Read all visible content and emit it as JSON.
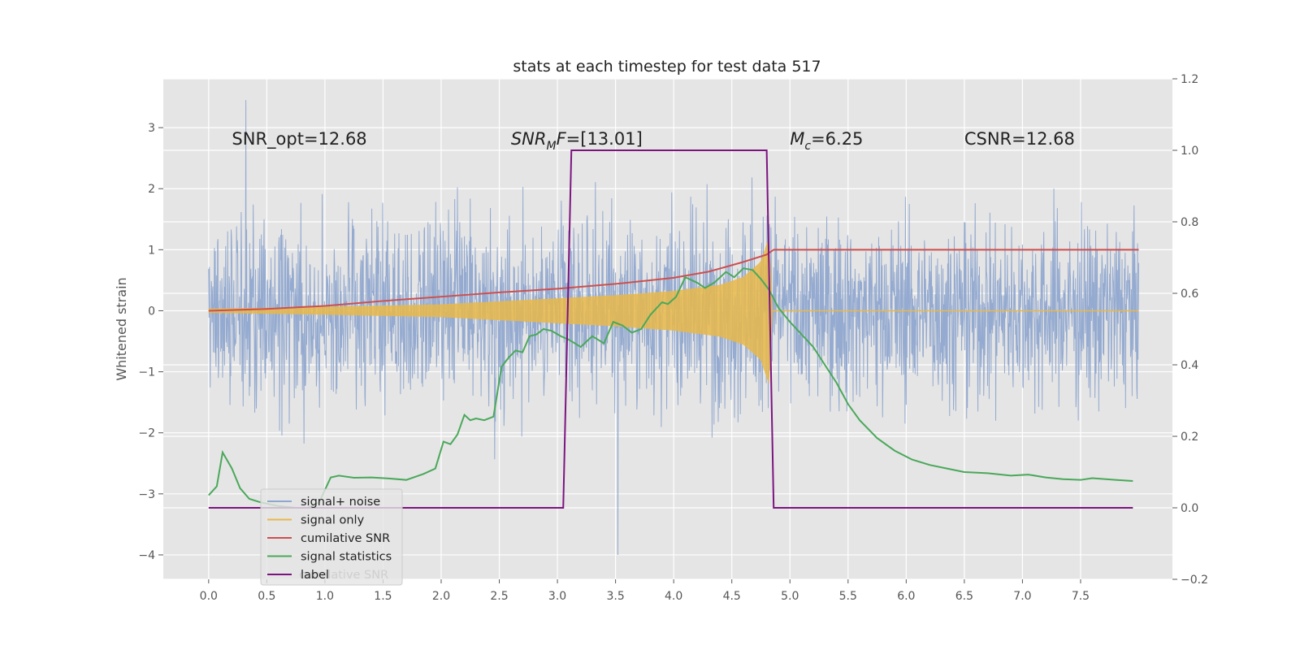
{
  "chart_data": {
    "type": "line",
    "title": "stats at each timestep for test data 517",
    "xlabel": "",
    "ylabel": "Whitened strain",
    "xlim": [
      -0.39,
      8.29
    ],
    "ylim": [
      -4.4,
      3.8
    ],
    "y2lim": [
      -0.2,
      1.2
    ],
    "x_ticks": [
      0.0,
      0.5,
      1.0,
      1.5,
      2.0,
      2.5,
      3.0,
      3.5,
      4.0,
      4.5,
      5.0,
      5.5,
      6.0,
      6.5,
      7.0,
      7.5
    ],
    "x_tick_labels": [
      "0.0",
      "0.5",
      "1.0",
      "1.5",
      "2.0",
      "2.5",
      "3.0",
      "3.5",
      "4.0",
      "4.5",
      "5.0",
      "5.5",
      "6.0",
      "6.5",
      "7.0",
      "7.5"
    ],
    "y_ticks": [
      3,
      2,
      1,
      0,
      -1,
      -2,
      -3,
      -4
    ],
    "y_tick_labels": [
      "3",
      "2",
      "1",
      "0",
      "−1",
      "−2",
      "−3",
      "−4"
    ],
    "y2_ticks": [
      1.2,
      1.0,
      0.8,
      0.6,
      0.4,
      0.2,
      0.0,
      -0.2
    ],
    "y2_tick_labels": [
      "1.2",
      "1.0",
      "0.8",
      "0.6",
      "0.4",
      "0.2",
      "0.0",
      "−0.2"
    ],
    "grid": true,
    "legend_position": "lower-left",
    "annotations": [
      {
        "text": "SNR_opt=12.68",
        "x": 0.2,
        "y": 2.72
      },
      {
        "text_parts": [
          "SNR",
          "M",
          "F=[13.01]"
        ],
        "x": 2.6,
        "y": 2.72
      },
      {
        "text_parts": [
          "M",
          "c",
          "=6.25"
        ],
        "x": 5.0,
        "y": 2.72
      },
      {
        "text": "CSNR=12.68",
        "x": 6.5,
        "y": 2.72
      }
    ],
    "series": [
      {
        "name": "signal+ noise",
        "color": "#8fa6cf",
        "axis": "left",
        "kind": "noise",
        "x_range": [
          0.0,
          8.0
        ],
        "spread": 1.0,
        "peak_max": 3.45,
        "peak_min": -4.0
      },
      {
        "name": "signal only",
        "color": "#e8b84a",
        "axis": "left",
        "kind": "chirp",
        "x_range": [
          0.0,
          4.85
        ],
        "envelope": [
          [
            0.0,
            0.03
          ],
          [
            1.0,
            0.06
          ],
          [
            2.0,
            0.1
          ],
          [
            2.5,
            0.15
          ],
          [
            3.0,
            0.2
          ],
          [
            3.5,
            0.25
          ],
          [
            4.0,
            0.32
          ],
          [
            4.4,
            0.42
          ],
          [
            4.6,
            0.55
          ],
          [
            4.75,
            0.8
          ],
          [
            4.82,
            1.2
          ],
          [
            4.85,
            0.0
          ]
        ],
        "flat_after": 8.0
      },
      {
        "name": "cumilative SNR",
        "color": "#cc4f4f",
        "axis": "left",
        "points": [
          [
            0.0,
            0.0
          ],
          [
            0.5,
            0.03
          ],
          [
            1.0,
            0.08
          ],
          [
            1.5,
            0.16
          ],
          [
            2.0,
            0.23
          ],
          [
            2.5,
            0.3
          ],
          [
            3.0,
            0.36
          ],
          [
            3.5,
            0.44
          ],
          [
            4.0,
            0.54
          ],
          [
            4.3,
            0.64
          ],
          [
            4.6,
            0.8
          ],
          [
            4.8,
            0.92
          ],
          [
            4.86,
            1.0
          ],
          [
            8.0,
            1.0
          ]
        ]
      },
      {
        "name": "signal statistics",
        "color": "#4aa85a",
        "axis": "right",
        "points": [
          [
            0.0,
            0.035
          ],
          [
            0.07,
            0.06
          ],
          [
            0.12,
            0.155
          ],
          [
            0.2,
            0.11
          ],
          [
            0.27,
            0.055
          ],
          [
            0.35,
            0.025
          ],
          [
            0.45,
            0.015
          ],
          [
            0.6,
            0.005
          ],
          [
            0.75,
            0.0
          ],
          [
            0.85,
            0.0
          ],
          [
            0.95,
            0.015
          ],
          [
            1.05,
            0.085
          ],
          [
            1.12,
            0.09
          ],
          [
            1.25,
            0.084
          ],
          [
            1.4,
            0.085
          ],
          [
            1.55,
            0.082
          ],
          [
            1.7,
            0.078
          ],
          [
            1.85,
            0.095
          ],
          [
            1.95,
            0.11
          ],
          [
            2.02,
            0.185
          ],
          [
            2.08,
            0.178
          ],
          [
            2.14,
            0.205
          ],
          [
            2.2,
            0.26
          ],
          [
            2.25,
            0.245
          ],
          [
            2.3,
            0.25
          ],
          [
            2.37,
            0.245
          ],
          [
            2.45,
            0.255
          ],
          [
            2.52,
            0.395
          ],
          [
            2.58,
            0.42
          ],
          [
            2.64,
            0.44
          ],
          [
            2.7,
            0.435
          ],
          [
            2.76,
            0.48
          ],
          [
            2.82,
            0.485
          ],
          [
            2.88,
            0.5
          ],
          [
            2.95,
            0.495
          ],
          [
            3.03,
            0.48
          ],
          [
            3.1,
            0.47
          ],
          [
            3.2,
            0.45
          ],
          [
            3.3,
            0.48
          ],
          [
            3.4,
            0.46
          ],
          [
            3.48,
            0.52
          ],
          [
            3.56,
            0.51
          ],
          [
            3.64,
            0.49
          ],
          [
            3.72,
            0.5
          ],
          [
            3.8,
            0.54
          ],
          [
            3.9,
            0.575
          ],
          [
            3.95,
            0.57
          ],
          [
            4.02,
            0.59
          ],
          [
            4.1,
            0.645
          ],
          [
            4.2,
            0.63
          ],
          [
            4.27,
            0.615
          ],
          [
            4.35,
            0.63
          ],
          [
            4.45,
            0.66
          ],
          [
            4.52,
            0.645
          ],
          [
            4.6,
            0.67
          ],
          [
            4.68,
            0.665
          ],
          [
            4.75,
            0.64
          ],
          [
            4.82,
            0.61
          ],
          [
            4.9,
            0.56
          ],
          [
            5.0,
            0.52
          ],
          [
            5.1,
            0.485
          ],
          [
            5.2,
            0.45
          ],
          [
            5.3,
            0.4
          ],
          [
            5.4,
            0.35
          ],
          [
            5.5,
            0.29
          ],
          [
            5.6,
            0.245
          ],
          [
            5.75,
            0.195
          ],
          [
            5.9,
            0.16
          ],
          [
            6.05,
            0.135
          ],
          [
            6.2,
            0.12
          ],
          [
            6.35,
            0.11
          ],
          [
            6.5,
            0.1
          ],
          [
            6.7,
            0.097
          ],
          [
            6.9,
            0.09
          ],
          [
            7.05,
            0.093
          ],
          [
            7.2,
            0.085
          ],
          [
            7.35,
            0.08
          ],
          [
            7.5,
            0.078
          ],
          [
            7.6,
            0.083
          ],
          [
            7.8,
            0.078
          ],
          [
            7.95,
            0.075
          ]
        ]
      },
      {
        "name": "label",
        "color": "#7c1480",
        "axis": "right",
        "points": [
          [
            0.0,
            0.0
          ],
          [
            3.05,
            0.0
          ],
          [
            3.12,
            1.0
          ],
          [
            4.8,
            1.0
          ],
          [
            4.86,
            0.0
          ],
          [
            7.95,
            0.0
          ]
        ]
      }
    ],
    "legend_ghost_text": "cumilative SNR"
  }
}
